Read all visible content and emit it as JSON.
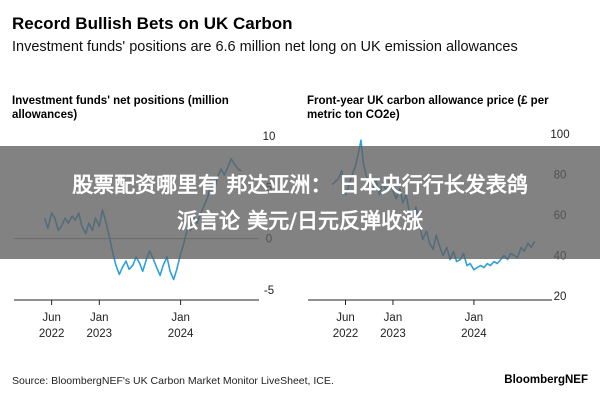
{
  "header": {
    "title": "Record Bullish Bets on UK Carbon",
    "subtitle": "Investment funds' positions are 6.6 million net long on UK emission allowances"
  },
  "overlay": {
    "line1": "股票配资哪里有 邦达亚洲： 日本央行行长发表鸽",
    "line2": "派言论 美元/日元反弹收涨"
  },
  "footer": {
    "source": "Source: BloombergNEF's UK Carbon Market Monitor LiveSheet, ICE.",
    "brand": "BloombergNEF"
  },
  "colors": {
    "line": "#2ea0dc",
    "zero_line": "#999999",
    "axis": "#222222",
    "text": "#222222"
  },
  "chart_data": [
    {
      "type": "line",
      "title": "Investment funds' net positions (million allowances)",
      "x_ticks": [
        {
          "date": "2022-06-01",
          "label": [
            "Jun",
            "2022"
          ]
        },
        {
          "date": "2023-01-01",
          "label": [
            "Jan",
            "2023"
          ]
        },
        {
          "date": "2024-01-01",
          "label": [
            "Jan",
            "2024"
          ]
        }
      ],
      "xlim": [
        "2022-01-01",
        "2024-11-30"
      ],
      "y_ticks": [
        10,
        5,
        0,
        -5
      ],
      "ylim": [
        -6,
        11
      ],
      "y_axis_side": "right",
      "zero_line": true,
      "series": [
        {
          "x": [
            "2022-05-01",
            "2022-05-15",
            "2022-06-01",
            "2022-06-15",
            "2022-07-01",
            "2022-07-15",
            "2022-08-01",
            "2022-08-15",
            "2022-09-01",
            "2022-09-15",
            "2022-10-01",
            "2022-10-15",
            "2022-11-01",
            "2022-11-15",
            "2022-12-01",
            "2022-12-15",
            "2023-01-01",
            "2023-01-15",
            "2023-02-01",
            "2023-02-15",
            "2023-03-01",
            "2023-03-15",
            "2023-04-01",
            "2023-04-15",
            "2023-05-01",
            "2023-05-15",
            "2023-06-01",
            "2023-06-15",
            "2023-07-01",
            "2023-07-15",
            "2023-08-01",
            "2023-08-15",
            "2023-09-01",
            "2023-09-15",
            "2023-10-01",
            "2023-10-15",
            "2023-11-01",
            "2023-11-15",
            "2023-12-01",
            "2023-12-15",
            "2024-01-01",
            "2024-01-15",
            "2024-02-01",
            "2024-02-15",
            "2024-03-01",
            "2024-03-15",
            "2024-04-01",
            "2024-04-15",
            "2024-05-01",
            "2024-05-15",
            "2024-06-01",
            "2024-06-15",
            "2024-07-01",
            "2024-07-15",
            "2024-08-01",
            "2024-08-15",
            "2024-09-01",
            "2024-09-15",
            "2024-10-01"
          ],
          "y": [
            2.0,
            1.0,
            2.5,
            2.0,
            0.8,
            1.2,
            2.0,
            1.5,
            2.2,
            1.8,
            2.5,
            1.2,
            0.5,
            1.5,
            0.8,
            2.0,
            1.2,
            2.8,
            1.5,
            0.2,
            -1.2,
            -2.5,
            -3.5,
            -2.8,
            -2.2,
            -3.0,
            -2.6,
            -1.8,
            -2.4,
            -3.2,
            -2.0,
            -1.2,
            -2.0,
            -2.8,
            -3.6,
            -2.6,
            -1.8,
            -3.2,
            -4.0,
            -3.0,
            -1.5,
            -0.5,
            1.0,
            0.8,
            2.0,
            1.5,
            2.5,
            3.2,
            4.0,
            5.2,
            4.8,
            6.0,
            6.8,
            6.2,
            7.0,
            7.8,
            7.2,
            6.8,
            6.6
          ]
        }
      ]
    },
    {
      "type": "line",
      "title": "Front-year UK carbon allowance price (£ per metric ton CO2e)",
      "x_ticks": [
        {
          "date": "2022-06-01",
          "label": [
            "Jun",
            "2022"
          ]
        },
        {
          "date": "2023-01-01",
          "label": [
            "Jan",
            "2023"
          ]
        },
        {
          "date": "2024-01-01",
          "label": [
            "Jan",
            "2024"
          ]
        }
      ],
      "xlim": [
        "2022-01-01",
        "2024-11-30"
      ],
      "y_ticks": [
        100,
        80,
        60,
        40,
        20
      ],
      "ylim": [
        18,
        104
      ],
      "y_axis_side": "right",
      "series": [
        {
          "x": [
            "2022-04-01",
            "2022-05-01",
            "2022-05-15",
            "2022-06-01",
            "2022-06-15",
            "2022-07-01",
            "2022-07-15",
            "2022-08-01",
            "2022-08-10",
            "2022-08-20",
            "2022-09-01",
            "2022-09-15",
            "2022-10-01",
            "2022-10-15",
            "2022-11-01",
            "2022-11-15",
            "2022-12-01",
            "2022-12-15",
            "2023-01-01",
            "2023-01-15",
            "2023-02-01",
            "2023-02-15",
            "2023-03-01",
            "2023-03-15",
            "2023-04-01",
            "2023-04-15",
            "2023-05-01",
            "2023-05-15",
            "2023-06-01",
            "2023-06-15",
            "2023-07-01",
            "2023-07-15",
            "2023-08-01",
            "2023-08-15",
            "2023-09-01",
            "2023-09-15",
            "2023-10-01",
            "2023-10-15",
            "2023-11-01",
            "2023-11-15",
            "2023-12-01",
            "2023-12-15",
            "2024-01-01",
            "2024-01-15",
            "2024-02-01",
            "2024-02-15",
            "2024-03-01",
            "2024-03-15",
            "2024-04-01",
            "2024-04-15",
            "2024-05-01",
            "2024-05-15",
            "2024-06-01",
            "2024-06-15",
            "2024-07-01",
            "2024-07-15",
            "2024-08-01",
            "2024-08-15",
            "2024-09-01",
            "2024-09-15",
            "2024-10-01"
          ],
          "y": [
            75,
            78,
            82,
            70,
            74,
            80,
            84,
            92,
            97,
            86,
            80,
            75,
            72,
            78,
            70,
            76,
            72,
            77,
            72,
            68,
            73,
            66,
            70,
            62,
            58,
            64,
            55,
            48,
            52,
            46,
            43,
            50,
            44,
            40,
            44,
            38,
            42,
            37,
            38,
            41,
            35,
            36,
            33,
            34,
            35,
            34,
            36,
            35,
            37,
            36,
            38,
            40,
            38,
            41,
            40,
            39,
            44,
            42,
            46,
            44,
            47
          ]
        }
      ]
    }
  ]
}
